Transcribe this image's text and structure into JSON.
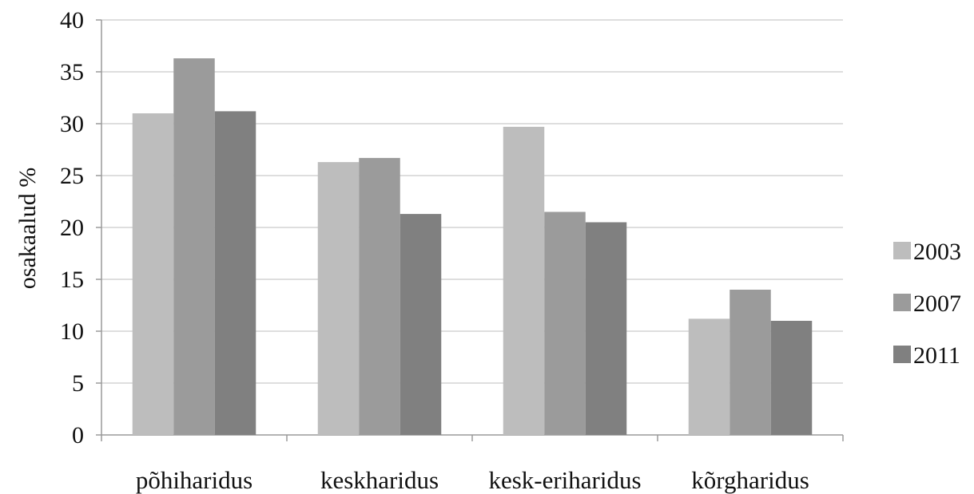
{
  "chart_data": {
    "type": "bar",
    "title": "",
    "xlabel": "",
    "ylabel": "osakaalud %",
    "ylim": [
      0,
      40
    ],
    "yticks": [
      0,
      5,
      10,
      15,
      20,
      25,
      30,
      35,
      40
    ],
    "grid": true,
    "legend_position": "right",
    "categories": [
      "põhiharidus",
      "keskharidus",
      "kesk-eriharidus",
      "kõrgharidus"
    ],
    "series": [
      {
        "name": "2003",
        "color": "#bdbdbd",
        "values": [
          31.0,
          26.3,
          29.7,
          11.2
        ]
      },
      {
        "name": "2007",
        "color": "#9b9b9b",
        "values": [
          36.3,
          26.7,
          21.5,
          14.0
        ]
      },
      {
        "name": "2011",
        "color": "#808080",
        "values": [
          31.2,
          21.3,
          20.5,
          11.0
        ]
      }
    ]
  }
}
